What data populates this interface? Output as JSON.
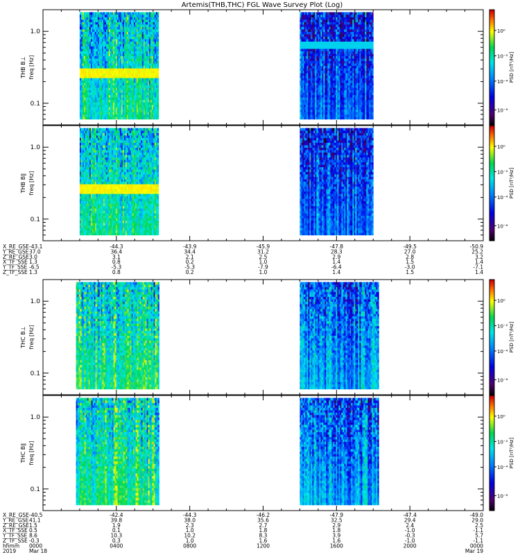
{
  "title": "Artemis(THB,THC) FGL Wave Survey Plot (Log)",
  "chart_data": [
    {
      "type": "heatmap",
      "probe": "THB",
      "ylabel_name": "THB B⊥",
      "ylabel_unit": "freq [Hz]",
      "colorbar_label": "PSD [nT²/Hz]",
      "colorbar_ticks": [
        "10⁰",
        "10⁻²",
        "10⁻⁴",
        "10⁻⁶"
      ],
      "yticks": [
        "1.0",
        "0.1"
      ],
      "yscale": "log",
      "ylim_hz": [
        0.05,
        2.0
      ],
      "data_intervals_hours": [
        [
          2.0,
          6.3
        ],
        [
          14.0,
          18.0
        ]
      ],
      "band_hint": "yellow band near 0.27 Hz in first interval"
    },
    {
      "type": "heatmap",
      "probe": "THB",
      "ylabel_name": "THB B∥",
      "ylabel_unit": "freq [Hz]",
      "colorbar_label": "PSD [nT²/Hz]",
      "colorbar_ticks": [
        "10⁰",
        "10⁻²",
        "10⁻⁴",
        "10⁻⁶"
      ],
      "yticks": [
        "1.0",
        "0.1"
      ],
      "yscale": "log",
      "ylim_hz": [
        0.05,
        2.0
      ],
      "data_intervals_hours": [
        [
          2.0,
          6.3
        ],
        [
          14.0,
          18.0
        ]
      ]
    },
    {
      "type": "heatmap",
      "probe": "THC",
      "ylabel_name": "THC B⊥",
      "ylabel_unit": "freq [Hz]",
      "colorbar_label": "PSD [nT²/Hz]",
      "colorbar_ticks": [
        "10⁰",
        "10⁻²",
        "10⁻⁴",
        "10⁻⁶"
      ],
      "yticks": [
        "1.0",
        "0.1"
      ],
      "yscale": "log",
      "ylim_hz": [
        0.05,
        2.0
      ],
      "data_intervals_hours": [
        [
          1.8,
          6.3
        ],
        [
          14.0,
          18.3
        ]
      ]
    },
    {
      "type": "heatmap",
      "probe": "THC",
      "ylabel_name": "THC B∥",
      "ylabel_unit": "freq [Hz]",
      "colorbar_label": "PSD [nT²/Hz]",
      "colorbar_ticks": [
        "10⁰",
        "10⁻²",
        "10⁻⁴",
        "10⁻⁶"
      ],
      "yticks": [
        "1.0",
        "0.1"
      ],
      "yscale": "log",
      "ylim_hz": [
        0.05,
        2.0
      ],
      "data_intervals_hours": [
        [
          1.8,
          6.3
        ],
        [
          14.0,
          18.3
        ]
      ]
    }
  ],
  "ephem_thb": {
    "rows": [
      {
        "name": "X_RE_GSE",
        "values": [
          "-43.1",
          "-44.3",
          "-43.9",
          "-45.9",
          "-47.8",
          "-49.5",
          "-50.9"
        ]
      },
      {
        "name": "Y_RE_GSE",
        "values": [
          "37.0",
          "36.4",
          "34.4",
          "31.2",
          "28.3",
          "27.0",
          "25.2"
        ]
      },
      {
        "name": "Z_RE_GSE",
        "values": [
          "3.0",
          "3.1",
          "2.1",
          "2.5",
          "2.9",
          "2.8",
          "3.2"
        ]
      },
      {
        "name": "X_TF_SSE",
        "values": [
          "1.3",
          "0.8",
          "0.2",
          "1.0",
          "1.4",
          "1.5",
          "1.4"
        ]
      },
      {
        "name": "Y_TF_SSE",
        "values": [
          "-6.5",
          "-5.3",
          "-5.3",
          "-7.9",
          "-6.4",
          "-3.0",
          "-7.1"
        ]
      },
      {
        "name": "Z_TF_SSE",
        "values": [
          "1.3",
          "0.8",
          "0.2",
          "1.0",
          "1.4",
          "1.5",
          "1.4"
        ]
      }
    ]
  },
  "ephem_thc": {
    "rows": [
      {
        "name": "X_RE_GSE",
        "values": [
          "-40.5",
          "-42.4",
          "-44.3",
          "-46.2",
          "-47.9",
          "-47.4",
          "-49.0"
        ]
      },
      {
        "name": "Y_RE_GSE",
        "values": [
          "41.1",
          "39.8",
          "38.0",
          "35.6",
          "32.5",
          "29.4",
          "29.0"
        ]
      },
      {
        "name": "Z_RE_GSE",
        "values": [
          "1.5",
          "1.9",
          "2.3",
          "2.7",
          "2.9",
          "2.4",
          "2.5"
        ]
      },
      {
        "name": "X_TF_SSE",
        "values": [
          "0.5",
          "0.1",
          "1.0",
          "1.8",
          "1.8",
          "-1.0",
          "-1.1"
        ]
      },
      {
        "name": "Y_TF_SSE",
        "values": [
          "8.6",
          "10.3",
          "10.2",
          "8.3",
          "3.9",
          "-0.3",
          "5.7"
        ]
      },
      {
        "name": "Z_TF_SSE",
        "values": [
          "-0.3",
          "0.3",
          "1.0",
          "1.6",
          "1.6",
          "-1.0",
          "-1.1"
        ]
      }
    ],
    "hhmm_name": "hhmm",
    "hhmm": [
      "0000",
      "0400",
      "0800",
      "1200",
      "1600",
      "2000",
      "0000"
    ],
    "date_year": "2019",
    "date_start": "Mar 18",
    "date_end": "Mar 19"
  }
}
